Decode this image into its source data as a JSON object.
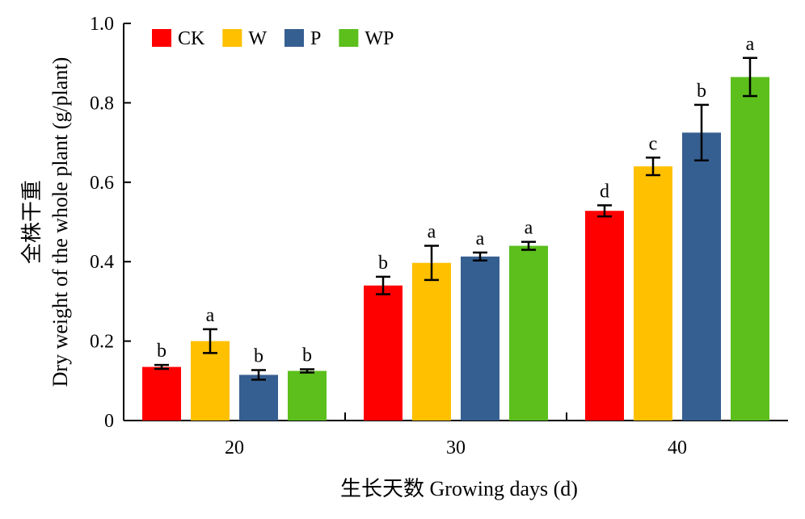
{
  "chart_data": {
    "type": "bar",
    "categories": [
      "20",
      "30",
      "40"
    ],
    "series": [
      {
        "name": "CK",
        "color": "#ff0000",
        "values": [
          0.135,
          0.34,
          0.528
        ],
        "errors": [
          0.005,
          0.022,
          0.014
        ],
        "sig": [
          "b",
          "b",
          "d"
        ]
      },
      {
        "name": "W",
        "color": "#ffc000",
        "values": [
          0.2,
          0.397,
          0.64
        ],
        "errors": [
          0.03,
          0.043,
          0.022
        ],
        "sig": [
          "a",
          "a",
          "c"
        ]
      },
      {
        "name": "P",
        "color": "#365f91",
        "values": [
          0.115,
          0.413,
          0.725
        ],
        "errors": [
          0.012,
          0.01,
          0.07
        ],
        "sig": [
          "b",
          "a",
          "b"
        ]
      },
      {
        "name": "WP",
        "color": "#5cbf1c",
        "values": [
          0.125,
          0.44,
          0.865
        ],
        "errors": [
          0.004,
          0.01,
          0.048
        ],
        "sig": [
          "b",
          "a",
          "a"
        ]
      }
    ],
    "xlabel": "生长天数 Growing days (d)",
    "ylabel_line1": "全株干重",
    "ylabel_line2": "Dry weight of the whole plant (g/plant)",
    "ylim": [
      0,
      1.0
    ],
    "yticks": [
      0,
      0.2,
      0.4,
      0.6,
      0.8,
      1.0
    ],
    "ytick_labels": [
      "0",
      "0.2",
      "0.4",
      "0.6",
      "0.8",
      "1.0"
    ],
    "legend_position": "top-left",
    "grid": false
  }
}
